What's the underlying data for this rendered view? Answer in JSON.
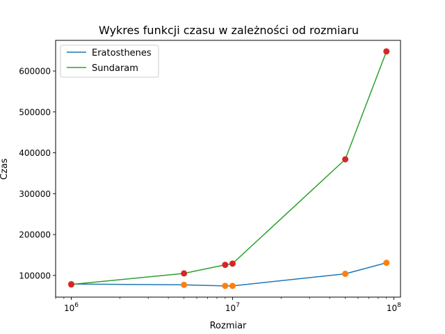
{
  "chart_data": {
    "type": "line",
    "title": "Wykres funkcji czasu w zależności od rozmiaru",
    "xlabel": "Rozmiar",
    "ylabel": "Czas",
    "xscale": "log",
    "xlim": [
      800000,
      110000000
    ],
    "ylim": [
      47000,
      675000
    ],
    "x": [
      1000000,
      5000000,
      9000000,
      10000000,
      50000000,
      90000000
    ],
    "x_ticks": [
      {
        "value": 1000000,
        "base": "10",
        "exp": "6"
      },
      {
        "value": 10000000,
        "base": "10",
        "exp": "7"
      },
      {
        "value": 100000000,
        "base": "10",
        "exp": "8"
      }
    ],
    "y_ticks": [
      {
        "value": 100000,
        "label": "100000"
      },
      {
        "value": 200000,
        "label": "200000"
      },
      {
        "value": 300000,
        "label": "300000"
      },
      {
        "value": 400000,
        "label": "400000"
      },
      {
        "value": 500000,
        "label": "500000"
      },
      {
        "value": 600000,
        "label": "600000"
      }
    ],
    "series": [
      {
        "name": "Eratosthenes",
        "color": "#1f77b4",
        "marker_color": "#ff7f0e",
        "values": [
          79000,
          77000,
          74500,
          74500,
          104000,
          131000
        ]
      },
      {
        "name": "Sundaram",
        "color": "#2ca02c",
        "marker_color": "#d62728",
        "values": [
          78000,
          105000,
          126000,
          129000,
          384000,
          648000
        ]
      }
    ],
    "legend_position": "top-left",
    "grid": false
  }
}
